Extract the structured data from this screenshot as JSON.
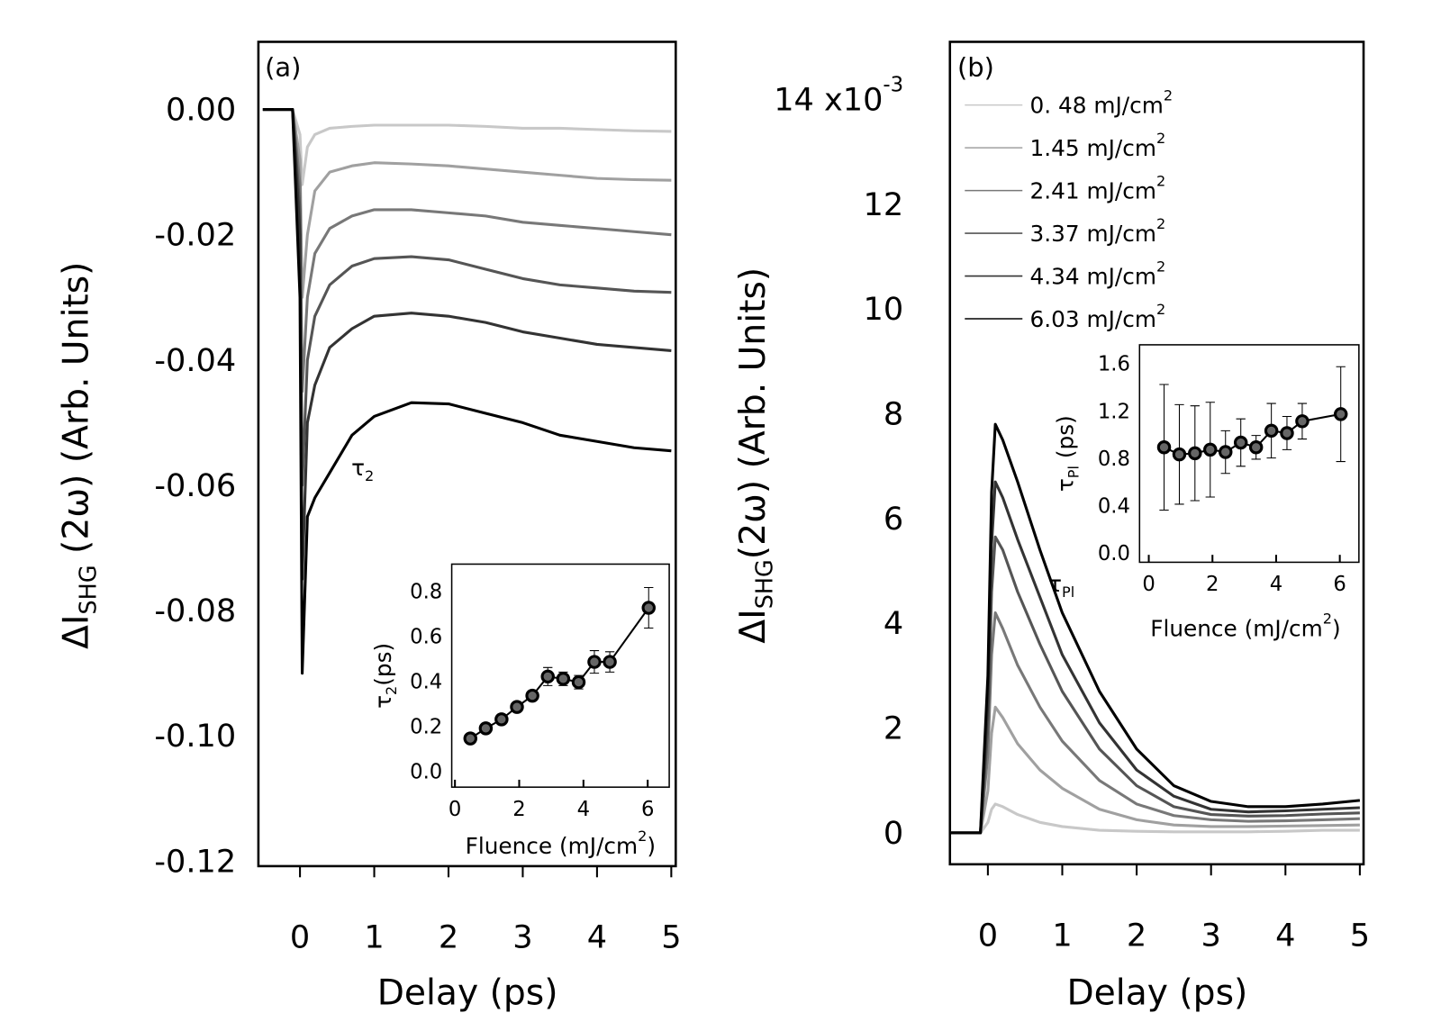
{
  "chart_data": [
    {
      "type": "line",
      "panel_label": "(a)",
      "ylabel": "ΔI",
      "ylabel_sub": "SHG",
      "ylabel_end": " (2ω) (Arb. Units)",
      "xlabel": "Delay (ps)",
      "annotation": "τ",
      "annotation_sub": "2",
      "x": [
        -0.5,
        -0.1,
        0,
        0.03,
        0.1,
        0.2,
        0.4,
        0.7,
        1,
        1.5,
        2,
        2.5,
        3,
        3.5,
        4,
        4.5,
        5
      ],
      "xlim": [
        -0.56,
        5.06
      ],
      "xticks": [
        0,
        1,
        2,
        3,
        4,
        5
      ],
      "ylim": [
        -0.1208,
        0.0108
      ],
      "yticks": [
        {
          "value": 0,
          "label": "0.00"
        },
        -0.02,
        -0.04,
        -0.06,
        -0.08,
        {
          "value": -0.1,
          "label": "-0.10"
        },
        -0.12
      ],
      "series": [
        {
          "color": "#c8c8c8",
          "values": [
            0,
            0,
            -0.004,
            -0.012,
            -0.006,
            -0.004,
            -0.003,
            -0.0027,
            -0.0025,
            -0.0025,
            -0.0025,
            -0.0027,
            -0.003,
            -0.003,
            -0.0032,
            -0.0034,
            -0.0035
          ]
        },
        {
          "color": "#a0a0a0",
          "values": [
            0,
            0,
            -0.008,
            -0.03,
            -0.02,
            -0.013,
            -0.01,
            -0.009,
            -0.0085,
            -0.0087,
            -0.009,
            -0.0095,
            -0.01,
            -0.0105,
            -0.011,
            -0.0112,
            -0.0113
          ]
        },
        {
          "color": "#787878",
          "values": [
            0,
            0,
            -0.012,
            -0.045,
            -0.03,
            -0.023,
            -0.019,
            -0.017,
            -0.016,
            -0.016,
            -0.0165,
            -0.017,
            -0.018,
            -0.0185,
            -0.019,
            -0.0195,
            -0.02
          ]
        },
        {
          "color": "#555555",
          "values": [
            0,
            0,
            -0.016,
            -0.06,
            -0.04,
            -0.033,
            -0.028,
            -0.025,
            -0.0238,
            -0.0235,
            -0.024,
            -0.0255,
            -0.027,
            -0.028,
            -0.0285,
            -0.029,
            -0.0292
          ]
        },
        {
          "color": "#333333",
          "values": [
            0,
            0,
            -0.02,
            -0.075,
            -0.05,
            -0.044,
            -0.038,
            -0.035,
            -0.033,
            -0.0325,
            -0.033,
            -0.034,
            -0.0355,
            -0.0365,
            -0.0375,
            -0.038,
            -0.0385
          ]
        },
        {
          "color": "#000000",
          "values": [
            0,
            0,
            -0.03,
            -0.09,
            -0.065,
            -0.062,
            -0.058,
            -0.052,
            -0.049,
            -0.0468,
            -0.047,
            -0.0485,
            -0.05,
            -0.052,
            -0.053,
            -0.054,
            -0.0545
          ]
        }
      ]
    },
    {
      "type": "line",
      "markers": true,
      "ylabel": "τ",
      "ylabel_sub": "2",
      "ylabel_end": "(ps)",
      "xlabel": "Fluence (mJ/cm",
      "xlabel_sup": "2",
      "xlabel_end": ")",
      "x": [
        0.48,
        0.96,
        1.45,
        1.93,
        2.41,
        2.89,
        3.37,
        3.85,
        4.34,
        4.82,
        6.03
      ],
      "xlim": [
        -0.1,
        6.67
      ],
      "xticks": [
        0,
        2,
        4,
        6
      ],
      "ylim": [
        -0.066,
        0.924
      ],
      "yticks": [
        {
          "value": 0,
          "label": "0.0"
        },
        0.2,
        0.4,
        0.6,
        0.8
      ],
      "series": [
        {
          "color": "#000000",
          "values": [
            0.15,
            0.195,
            0.235,
            0.29,
            0.34,
            0.425,
            0.415,
            0.4,
            0.49,
            0.49,
            0.73
          ],
          "errors": [
            0.015,
            0.01,
            0.015,
            0.015,
            0.02,
            0.04,
            0.03,
            0.03,
            0.05,
            0.045,
            0.09
          ]
        }
      ]
    },
    {
      "type": "line",
      "panel_label": "(b)",
      "ylabel": "ΔI",
      "ylabel_sub": "SHG",
      "ylabel_end": "(2ω) (Arb. Units)",
      "xlabel": "Delay (ps)",
      "annotation": "τ",
      "annotation_sub": "Pl",
      "y_exponent": "-3",
      "legend_exponent": "2",
      "x": [
        -0.5,
        -0.1,
        0,
        0.05,
        0.1,
        0.2,
        0.4,
        0.7,
        1,
        1.5,
        2,
        2.5,
        3,
        3.5,
        4,
        4.5,
        5
      ],
      "xlim": [
        -0.51,
        5.05
      ],
      "xticks": [
        0,
        1,
        2,
        3,
        4,
        5
      ],
      "ylim": [
        -0.6,
        15.1
      ],
      "yticks": [
        0,
        2,
        4,
        6,
        8,
        10,
        12,
        {
          "value": 14,
          "label": "14 x10"
        }
      ],
      "series": [
        {
          "name": "0. 48 mJ/cm",
          "color": "#c8c8c8",
          "values": [
            0,
            0,
            0.2,
            0.45,
            0.55,
            0.5,
            0.35,
            0.2,
            0.12,
            0.05,
            0.03,
            0.02,
            0.02,
            0.02,
            0.03,
            0.05,
            0.05
          ]
        },
        {
          "name": "1.45 mJ/cm",
          "color": "#a0a0a0",
          "values": [
            0,
            0,
            0.8,
            1.9,
            2.4,
            2.2,
            1.7,
            1.2,
            0.85,
            0.45,
            0.25,
            0.15,
            0.12,
            0.12,
            0.13,
            0.14,
            0.15
          ]
        },
        {
          "name": "2.41 mJ/cm",
          "color": "#787878",
          "values": [
            0,
            0,
            1.5,
            3.4,
            4.2,
            3.9,
            3.2,
            2.4,
            1.75,
            1,
            0.55,
            0.33,
            0.25,
            0.22,
            0.23,
            0.25,
            0.27
          ]
        },
        {
          "name": "3.37 mJ/cm",
          "color": "#555555",
          "values": [
            0,
            0,
            2,
            4.6,
            5.65,
            5.4,
            4.6,
            3.6,
            2.7,
            1.6,
            0.9,
            0.5,
            0.35,
            0.32,
            0.33,
            0.36,
            0.38
          ]
        },
        {
          "name": "4.34 mJ/cm",
          "color": "#333333",
          "values": [
            0,
            0,
            2.5,
            5.5,
            6.7,
            6.4,
            5.6,
            4.5,
            3.4,
            2.1,
            1.2,
            0.7,
            0.45,
            0.4,
            0.42,
            0.45,
            0.48
          ]
        },
        {
          "name": "6.03 mJ/cm",
          "color": "#000000",
          "values": [
            0,
            0,
            3,
            6.5,
            7.8,
            7.5,
            6.7,
            5.4,
            4.2,
            2.7,
            1.6,
            0.9,
            0.6,
            0.5,
            0.5,
            0.55,
            0.62
          ]
        }
      ]
    },
    {
      "type": "line",
      "markers": true,
      "ylabel": "τ",
      "ylabel_sub": "Pl",
      "ylabel_end": " (ps)",
      "xlabel": "Fluence (mJ/cm",
      "xlabel_sup": "2",
      "xlabel_end": ")",
      "x": [
        0.48,
        0.96,
        1.45,
        1.93,
        2.41,
        2.89,
        3.37,
        3.85,
        4.34,
        4.82,
        6.03
      ],
      "xlim": [
        -0.29,
        6.6
      ],
      "xticks": [
        0,
        2,
        4,
        6
      ],
      "ylim": [
        -0.07,
        1.765
      ],
      "yticks": [
        {
          "value": 0,
          "label": "0.0"
        },
        0.4,
        0.8,
        1.2,
        1.6
      ],
      "series": [
        {
          "color": "#000000",
          "values": [
            0.9,
            0.84,
            0.85,
            0.88,
            0.86,
            0.94,
            0.9,
            1.04,
            1.02,
            1.12,
            1.18
          ],
          "errors": [
            0.53,
            0.42,
            0.4,
            0.4,
            0.18,
            0.2,
            0.1,
            0.23,
            0.14,
            0.15,
            0.4
          ]
        }
      ]
    }
  ]
}
